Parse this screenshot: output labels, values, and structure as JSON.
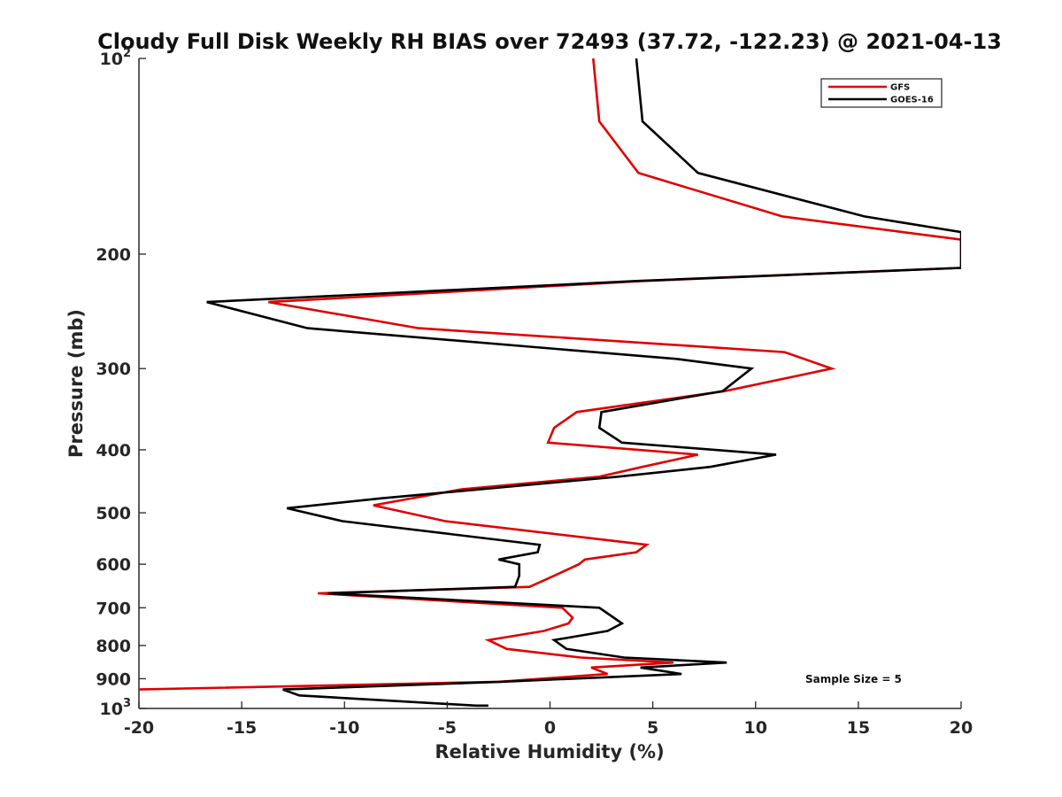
{
  "chart_data": {
    "type": "line",
    "title": "Cloudy Full Disk Weekly RH BIAS over 72493 (37.72, -122.23) @ 2021-04-13",
    "xlabel": "Relative Humidity (%)",
    "ylabel": "Pressure (mb)",
    "xlim": [
      -20,
      20
    ],
    "ylim": [
      100,
      1000
    ],
    "y_scale": "log",
    "y_reversed": true,
    "x_ticks": [
      "-20",
      "-15",
      "-10",
      "-5",
      "0",
      "5",
      "10",
      "15",
      "20"
    ],
    "y_ticks": [
      {
        "value": 100,
        "base": "10",
        "exp": "2"
      },
      {
        "value": 200,
        "label": "200"
      },
      {
        "value": 300,
        "label": "300"
      },
      {
        "value": 400,
        "label": "400"
      },
      {
        "value": 500,
        "label": "500"
      },
      {
        "value": 600,
        "label": "600"
      },
      {
        "value": 700,
        "label": "700"
      },
      {
        "value": 800,
        "label": "800"
      },
      {
        "value": 900,
        "label": "900"
      },
      {
        "value": 1000,
        "base": "10",
        "exp": "3"
      }
    ],
    "grid": false,
    "legend_position": "top-right",
    "annotation": "Sample Size = 5",
    "series": [
      {
        "name": "GFS",
        "color": "#e00000",
        "points": [
          [
            2.1,
            100
          ],
          [
            2.4,
            125
          ],
          [
            4.3,
            150
          ],
          [
            11.3,
            175
          ],
          [
            20.0,
            190
          ],
          [
            20.0,
            210
          ],
          [
            4.5,
            220
          ],
          [
            -13.7,
            237
          ],
          [
            -6.4,
            260
          ],
          [
            11.4,
            283
          ],
          [
            13.7,
            300
          ],
          [
            8.5,
            325
          ],
          [
            1.3,
            350
          ],
          [
            0.2,
            370
          ],
          [
            -0.1,
            390
          ],
          [
            7.2,
            407
          ],
          [
            4.5,
            425
          ],
          [
            2.4,
            440
          ],
          [
            -4.3,
            460
          ],
          [
            -8.6,
            487
          ],
          [
            -5.1,
            515
          ],
          [
            4.7,
            560
          ],
          [
            4.2,
            575
          ],
          [
            1.7,
            590
          ],
          [
            1.4,
            600
          ],
          [
            0.2,
            625
          ],
          [
            -1.0,
            650
          ],
          [
            -11.3,
            665
          ],
          [
            0.6,
            700
          ],
          [
            1.1,
            725
          ],
          [
            0.9,
            740
          ],
          [
            -0.3,
            760
          ],
          [
            -3.0,
            785
          ],
          [
            -2.1,
            810
          ],
          [
            1.5,
            835
          ],
          [
            6.0,
            850
          ],
          [
            2.0,
            865
          ],
          [
            2.8,
            885
          ],
          [
            -2.5,
            910
          ],
          [
            -20.0,
            935
          ]
        ]
      },
      {
        "name": "GOES-16",
        "color": "#000000",
        "points": [
          [
            4.2,
            100
          ],
          [
            4.5,
            125
          ],
          [
            7.2,
            150
          ],
          [
            15.3,
            175
          ],
          [
            20.0,
            185
          ],
          [
            20.0,
            210
          ],
          [
            4.2,
            220
          ],
          [
            -16.7,
            237
          ],
          [
            -11.8,
            260
          ],
          [
            6.2,
            290
          ],
          [
            9.8,
            300
          ],
          [
            8.4,
            325
          ],
          [
            2.5,
            350
          ],
          [
            2.4,
            370
          ],
          [
            3.5,
            390
          ],
          [
            11.0,
            407
          ],
          [
            7.8,
            425
          ],
          [
            3.3,
            440
          ],
          [
            -8.2,
            475
          ],
          [
            -12.8,
            492
          ],
          [
            -10.1,
            515
          ],
          [
            -0.5,
            560
          ],
          [
            -0.6,
            575
          ],
          [
            -2.5,
            590
          ],
          [
            -1.5,
            600
          ],
          [
            -1.5,
            625
          ],
          [
            -1.7,
            650
          ],
          [
            -10.8,
            665
          ],
          [
            2.4,
            700
          ],
          [
            3.1,
            725
          ],
          [
            3.5,
            740
          ],
          [
            2.8,
            760
          ],
          [
            0.2,
            785
          ],
          [
            0.8,
            810
          ],
          [
            3.6,
            835
          ],
          [
            8.6,
            850
          ],
          [
            4.4,
            865
          ],
          [
            6.4,
            885
          ],
          [
            -2.4,
            910
          ],
          [
            -13.0,
            935
          ],
          [
            -12.2,
            955
          ],
          [
            -3.6,
            990
          ],
          [
            -3.0,
            990
          ]
        ]
      }
    ]
  }
}
